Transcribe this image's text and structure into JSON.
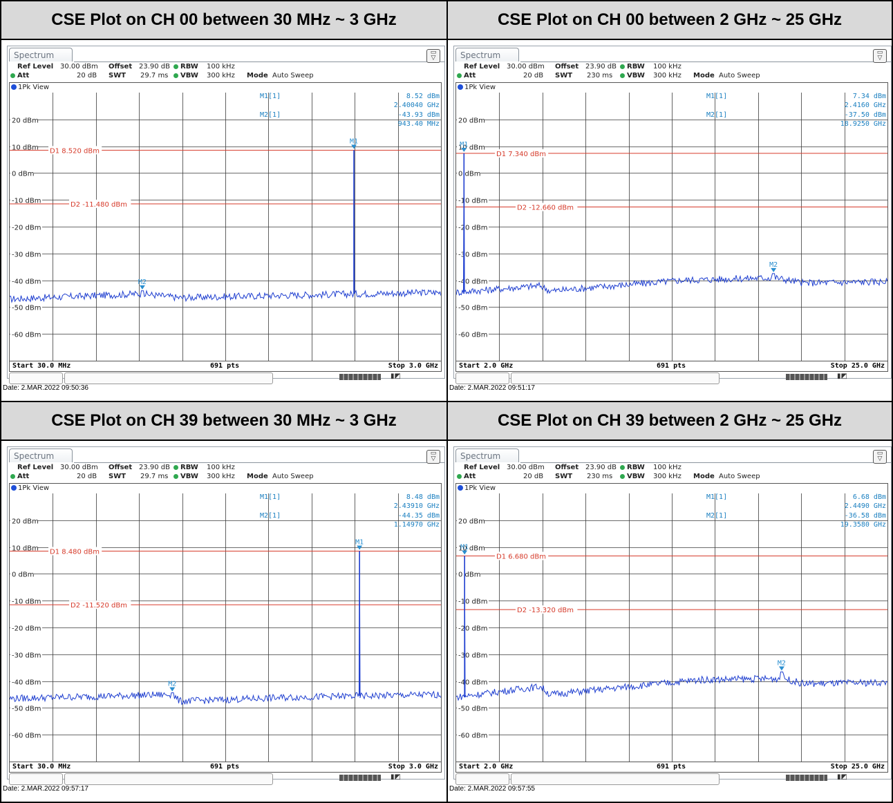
{
  "shared": {
    "tab_label": "Spectrum",
    "view_label": "1Pk View",
    "points_label": "691 pts",
    "ref_level_label": "Ref Level",
    "ref_level_value": "30.00 dBm",
    "att_label": "Att",
    "att_value": "20 dB",
    "offset_label": "Offset",
    "offset_value": "23.90 dB",
    "swt_label": "SWT",
    "rbw_label": "RBW",
    "rbw_value": "100 kHz",
    "vbw_label": "VBW",
    "vbw_value": "300 kHz",
    "mode_label": "Mode",
    "mode_value": "Auto Sweep",
    "m1_label": "M1[1]",
    "m2_label": "M2[1]",
    "colors": {
      "trace": "#1f3fd0",
      "limit": "#d63a2a",
      "marker": "#2a8fd0",
      "marker_text": "#1a7fc0"
    }
  },
  "panels": [
    {
      "title": "CSE Plot on CH 00 between 30 MHz ~ 3 GHz",
      "swt_value": "29.7 ms",
      "m1_level": "8.52 dBm",
      "m1_freq": "2.40040 GHz",
      "m2_level": "-43.93 dBm",
      "m2_freq": "943.40 MHz",
      "d1_text": "D1 8.520 dBm",
      "d2_text": "D2 -11.480 dBm",
      "start_text": "Start 30.0 MHz",
      "stop_text": "Stop 3.0 GHz",
      "date_text": "Date: 2.MAR.2022  09:50:36"
    },
    {
      "title": "CSE Plot on CH 00 between 2 GHz ~ 25 GHz",
      "swt_value": "230 ms",
      "m1_level": "7.34 dBm",
      "m1_freq": "2.4160 GHz",
      "m2_level": "-37.50 dBm",
      "m2_freq": "18.9250 GHz",
      "d1_text": "D1 7.340 dBm",
      "d2_text": "D2 -12.660 dBm",
      "start_text": "Start 2.0 GHz",
      "stop_text": "Stop 25.0 GHz",
      "date_text": "Date: 2.MAR.2022  09:51:17"
    },
    {
      "title": "CSE Plot on CH 39 between 30 MHz ~ 3 GHz",
      "swt_value": "29.7 ms",
      "m1_level": "8.48 dBm",
      "m1_freq": "2.43910 GHz",
      "m2_level": "-44.35 dBm",
      "m2_freq": "1.14970 GHz",
      "d1_text": "D1 8.480 dBm",
      "d2_text": "D2 -11.520 dBm",
      "start_text": "Start 30.0 MHz",
      "stop_text": "Stop 3.0 GHz",
      "date_text": "Date: 2.MAR.2022  09:57:17"
    },
    {
      "title": "CSE Plot on CH 39 between 2 GHz ~ 25 GHz",
      "swt_value": "230 ms",
      "m1_level": "6.68 dBm",
      "m1_freq": "2.4490 GHz",
      "m2_level": "-36.58 dBm",
      "m2_freq": "19.3580 GHz",
      "d1_text": "D1 6.680 dBm",
      "d2_text": "D2 -13.320 dBm",
      "start_text": "Start 2.0 GHz",
      "stop_text": "Stop 25.0 GHz",
      "date_text": "Date: 2.MAR.2022  09:57:55"
    }
  ],
  "chart_data": [
    {
      "type": "line",
      "title": "CSE Plot on CH 00 between 30 MHz ~ 3 GHz",
      "y_tick_labels": [
        "20 dBm",
        "10 dBm",
        "0 dBm",
        "-10 dBm",
        "-20 dBm",
        "-30 dBm",
        "-40 dBm",
        "-50 dBm",
        "-60 dBm"
      ],
      "ylim": [
        -70,
        30
      ],
      "xlim": [
        0.03,
        3.0
      ],
      "x_unit": "GHz",
      "points": 691,
      "grid": true,
      "limit_lines": [
        {
          "label": "D1",
          "value": 8.52
        },
        {
          "label": "D2",
          "value": -11.48
        }
      ],
      "markers": [
        {
          "label": "M1",
          "x": 2.4004,
          "y": 8.52
        },
        {
          "label": "M2",
          "x": 0.9434,
          "y": -43.93
        }
      ],
      "noise_floor": [
        [
          0.03,
          -47
        ],
        [
          0.94,
          -45
        ],
        [
          1.2,
          -46.5
        ],
        [
          2.0,
          -45.5
        ],
        [
          3.0,
          -44.5
        ]
      ],
      "peak": {
        "x": 2.4004,
        "y": 8.52
      }
    },
    {
      "type": "line",
      "title": "CSE Plot on CH 00 between 2 GHz ~ 25 GHz",
      "y_tick_labels": [
        "20 dBm",
        "10 dBm",
        "0 dBm",
        "-10 dBm",
        "-20 dBm",
        "-30 dBm",
        "-40 dBm",
        "-50 dBm",
        "-60 dBm"
      ],
      "ylim": [
        -70,
        30
      ],
      "xlim": [
        2.0,
        25.0
      ],
      "x_unit": "GHz",
      "points": 691,
      "grid": true,
      "limit_lines": [
        {
          "label": "D1",
          "value": 7.34
        },
        {
          "label": "D2",
          "value": -12.66
        }
      ],
      "markers": [
        {
          "label": "M1",
          "x": 2.416,
          "y": 7.34
        },
        {
          "label": "M2",
          "x": 18.925,
          "y": -37.5
        }
      ],
      "noise_floor": [
        [
          2.0,
          -44.5
        ],
        [
          6.5,
          -42
        ],
        [
          7.0,
          -44
        ],
        [
          14.0,
          -40
        ],
        [
          19.0,
          -39
        ],
        [
          20.5,
          -41
        ],
        [
          25.0,
          -40.5
        ]
      ],
      "peak": {
        "x": 2.416,
        "y": 7.34
      }
    },
    {
      "type": "line",
      "title": "CSE Plot on CH 39 between 30 MHz ~ 3 GHz",
      "y_tick_labels": [
        "20 dBm",
        "10 dBm",
        "0 dBm",
        "-10 dBm",
        "-20 dBm",
        "-30 dBm",
        "-40 dBm",
        "-50 dBm",
        "-60 dBm"
      ],
      "ylim": [
        -70,
        30
      ],
      "xlim": [
        0.03,
        3.0
      ],
      "x_unit": "GHz",
      "points": 691,
      "grid": true,
      "limit_lines": [
        {
          "label": "D1",
          "value": 8.48
        },
        {
          "label": "D2",
          "value": -11.52
        }
      ],
      "markers": [
        {
          "label": "M1",
          "x": 2.4391,
          "y": 8.48
        },
        {
          "label": "M2",
          "x": 1.1497,
          "y": -44.35
        }
      ],
      "noise_floor": [
        [
          0.03,
          -46.5
        ],
        [
          1.15,
          -45
        ],
        [
          1.2,
          -47.5
        ],
        [
          2.0,
          -46
        ],
        [
          3.0,
          -45
        ]
      ],
      "peak": {
        "x": 2.4391,
        "y": 8.48
      }
    },
    {
      "type": "line",
      "title": "CSE Plot on CH 39 between 2 GHz ~ 25 GHz",
      "y_tick_labels": [
        "20 dBm",
        "10 dBm",
        "0 dBm",
        "-10 dBm",
        "-20 dBm",
        "-30 dBm",
        "-40 dBm",
        "-50 dBm",
        "-60 dBm"
      ],
      "ylim": [
        -70,
        30
      ],
      "xlim": [
        2.0,
        25.0
      ],
      "x_unit": "GHz",
      "points": 691,
      "grid": true,
      "limit_lines": [
        {
          "label": "D1",
          "value": 6.68
        },
        {
          "label": "D2",
          "value": -13.32
        }
      ],
      "markers": [
        {
          "label": "M1",
          "x": 2.449,
          "y": 6.68
        },
        {
          "label": "M2",
          "x": 19.358,
          "y": -36.58
        }
      ],
      "noise_floor": [
        [
          2.0,
          -46
        ],
        [
          6.5,
          -42
        ],
        [
          7.0,
          -45
        ],
        [
          15.0,
          -39.5
        ],
        [
          19.5,
          -39
        ],
        [
          20.5,
          -41
        ],
        [
          25.0,
          -40.5
        ]
      ],
      "peak": {
        "x": 2.449,
        "y": 6.68
      }
    }
  ]
}
